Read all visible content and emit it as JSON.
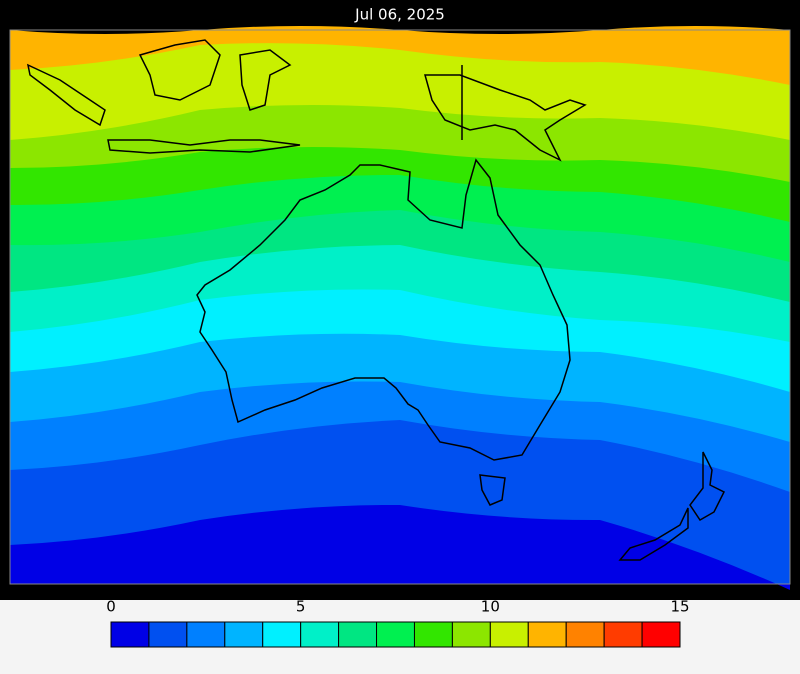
{
  "title": "Jul 06, 2025",
  "colorbar": {
    "range": [
      0,
      15
    ],
    "ticks": [
      0,
      5,
      10,
      15
    ],
    "colors": [
      "#0000e6",
      "#0050f0",
      "#0080ff",
      "#00b4ff",
      "#00f0ff",
      "#00f0c8",
      "#00e682",
      "#00f050",
      "#32e600",
      "#8ce600",
      "#c8f000",
      "#ffb400",
      "#ff8200",
      "#ff3c00",
      "#ff0000"
    ]
  }
}
